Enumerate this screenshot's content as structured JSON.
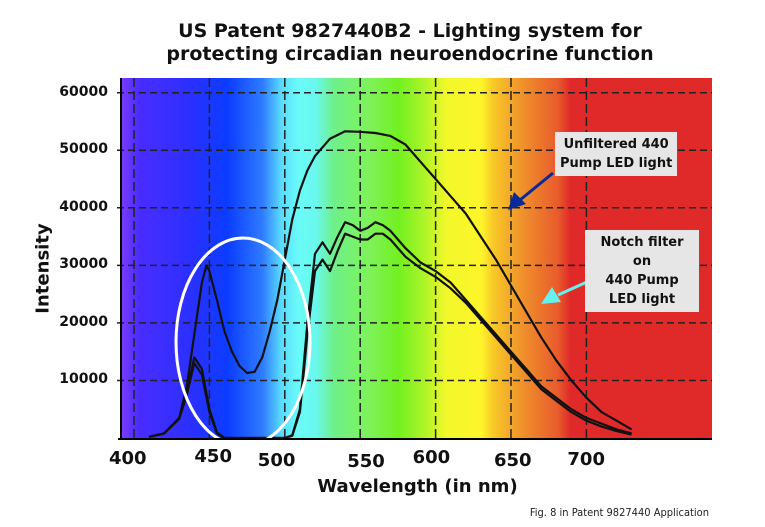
{
  "chart_data": {
    "type": "line",
    "title": "US Patent 9827440B2 - Lighting system for protecting circadian neuroendocrine function",
    "title_lines": [
      "US Patent 9827440B2 - Lighting system for",
      "protecting circadian neuroendocrine function"
    ],
    "xlabel": "Wavelength (in nm)",
    "ylabel": "Intensity",
    "xlim": [
      390,
      730
    ],
    "ylim": [
      0,
      62000
    ],
    "x_ticks": [
      400,
      450,
      500,
      550,
      600,
      650,
      700
    ],
    "y_ticks": [
      10000,
      20000,
      30000,
      40000,
      50000,
      60000
    ],
    "grid": true,
    "background": "visible spectrum gradient (violet to red)",
    "series": [
      {
        "name": "Unfiltered 440 Pump LED light",
        "x": [
          410,
          420,
          430,
          435,
          440,
          445,
          448,
          450,
          455,
          460,
          465,
          470,
          475,
          480,
          485,
          490,
          495,
          500,
          505,
          510,
          515,
          520,
          530,
          540,
          550,
          560,
          570,
          580,
          590,
          600,
          610,
          620,
          630,
          640,
          650,
          660,
          670,
          680,
          690,
          700,
          710,
          720,
          730
        ],
        "y": [
          200,
          800,
          3500,
          9000,
          18000,
          27000,
          30000,
          29000,
          24000,
          18500,
          15000,
          12500,
          11300,
          11500,
          14000,
          18500,
          24000,
          31000,
          38000,
          43000,
          46500,
          49000,
          52000,
          53300,
          53200,
          53000,
          52500,
          51000,
          48000,
          45000,
          42000,
          39000,
          35000,
          31000,
          26500,
          22000,
          17500,
          13500,
          10000,
          7000,
          4500,
          3000,
          1500
        ]
      },
      {
        "name": "Notch filter on 440 Pump LED light (upper)",
        "x": [
          410,
          420,
          430,
          435,
          440,
          445,
          450,
          455,
          460,
          500,
          505,
          510,
          515,
          520,
          525,
          530,
          535,
          540,
          545,
          550,
          555,
          560,
          565,
          570,
          580,
          590,
          600,
          610,
          620,
          630,
          640,
          650,
          660,
          670,
          680,
          690,
          700,
          710,
          720,
          730
        ],
        "y": [
          200,
          800,
          3500,
          8000,
          14000,
          12000,
          5000,
          1000,
          0,
          0,
          500,
          5000,
          20000,
          32000,
          34000,
          32000,
          35000,
          37500,
          37000,
          36000,
          36500,
          37500,
          37000,
          36000,
          33000,
          30500,
          29000,
          27000,
          24000,
          21000,
          18000,
          15000,
          12000,
          9000,
          7000,
          5000,
          3500,
          2500,
          1500,
          800
        ]
      },
      {
        "name": "Notch filter on 440 Pump LED light (lower)",
        "x": [
          410,
          420,
          430,
          435,
          440,
          445,
          450,
          455,
          460,
          500,
          505,
          510,
          515,
          520,
          525,
          530,
          535,
          540,
          545,
          550,
          555,
          560,
          565,
          570,
          580,
          590,
          600,
          610,
          620,
          630,
          640,
          650,
          660,
          670,
          680,
          690,
          700,
          710,
          720,
          730
        ],
        "y": [
          200,
          800,
          3300,
          7500,
          13000,
          11000,
          4500,
          800,
          0,
          0,
          400,
          4500,
          18000,
          29000,
          31000,
          29000,
          32500,
          35500,
          35000,
          34500,
          34500,
          35500,
          35500,
          34500,
          31500,
          29500,
          28000,
          26000,
          23500,
          20500,
          17500,
          14500,
          11500,
          8500,
          6500,
          4500,
          3000,
          2000,
          1200,
          600
        ]
      }
    ],
    "annotations": [
      {
        "text": "Unfiltered 440 Pump LED light",
        "lines": [
          "Unfiltered 440",
          "Pump LED light"
        ],
        "arrow_color": "#0a2a9a"
      },
      {
        "text": "Notch filter on 440 Pump LED light",
        "lines": [
          "Notch filter on",
          "440 Pump",
          "LED light"
        ],
        "arrow_color": "#66f0f0"
      },
      {
        "text": "white ellipse highlighting 440-470 nm blue peak region",
        "shape": "ellipse",
        "color": "#ffffff"
      }
    ],
    "caption": "Fig. 8 in Patent 9827440 Application"
  }
}
